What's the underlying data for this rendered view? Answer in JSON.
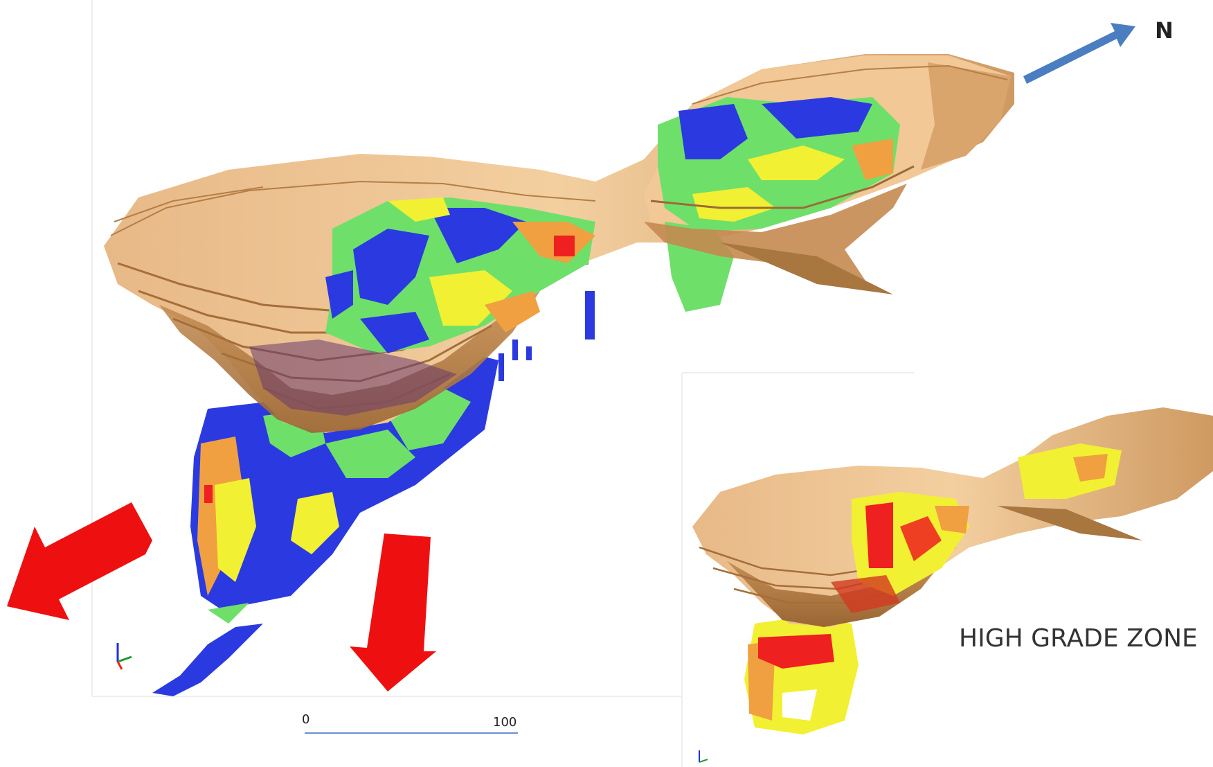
{
  "north_label": "N",
  "inset_label": "HIGH GRADE ZONE",
  "scale_bar": {
    "start_label": "0",
    "end_label": "100"
  },
  "colors": {
    "pit_shell": "#d9a56c",
    "pit_shell_dark": "#9c6a38",
    "grade_blue": "#1f2fe0",
    "grade_green": "#6ee06a",
    "grade_yellow": "#f2f032",
    "grade_orange": "#f0a040",
    "grade_red": "#ee2020",
    "north_arrow": "#4a7ec0",
    "direction_arrow": "#ee1010",
    "scale_bar": "#6a8fd0"
  }
}
